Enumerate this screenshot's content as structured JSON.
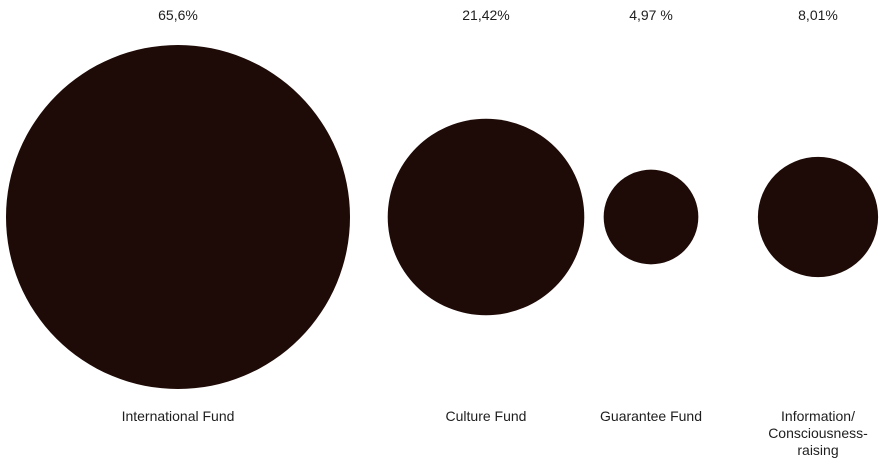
{
  "chart_data": {
    "type": "bubble",
    "title": "",
    "categories": [
      "International Fund",
      "Culture Fund",
      "Guarantee Fund",
      "Information/ Consciousness-raising"
    ],
    "category_label_lines": [
      [
        "International Fund"
      ],
      [
        "Culture Fund"
      ],
      [
        "Guarantee Fund"
      ],
      [
        "Information/",
        "Consciousness-",
        "raising"
      ]
    ],
    "values": [
      65.6,
      21.42,
      4.97,
      8.01
    ],
    "value_labels": [
      "65,6%",
      "21,42%",
      "4,97  %",
      "8,01%"
    ],
    "unit": "%",
    "color": "#1e0a06"
  }
}
